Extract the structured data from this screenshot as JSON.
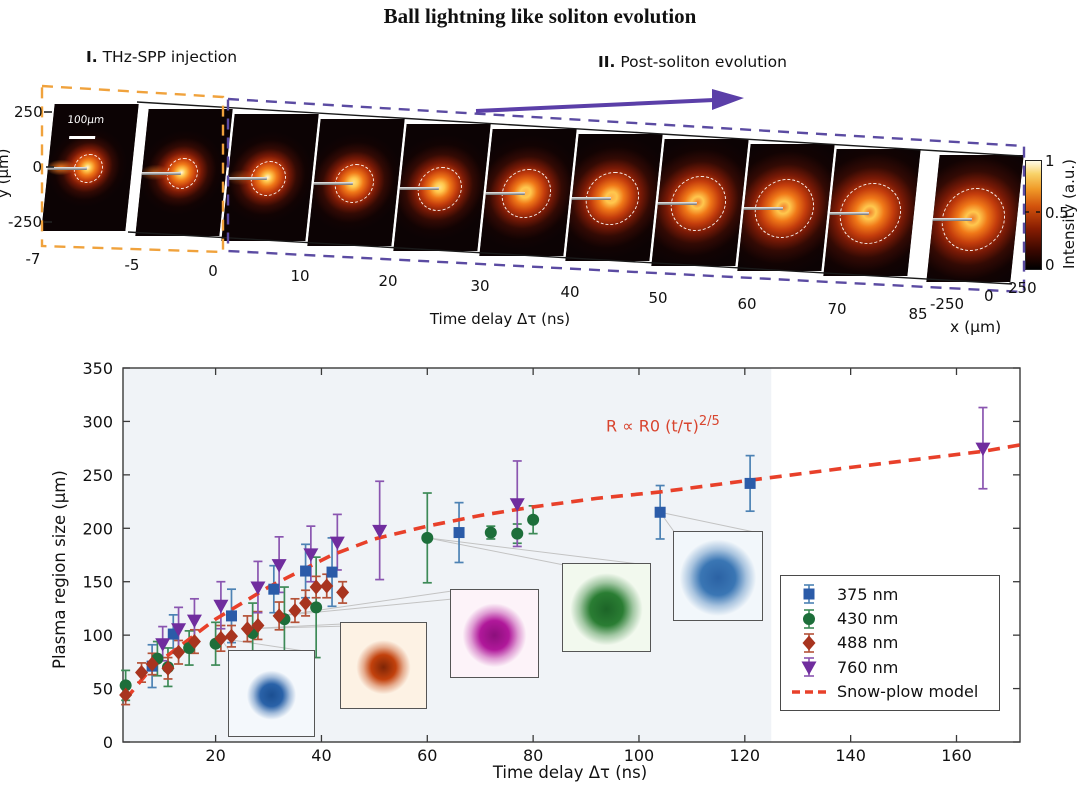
{
  "figure_title": "Ball lightning like soliton evolution",
  "montage": {
    "section_injection": {
      "roman": "I.",
      "label": "THz-SPP injection"
    },
    "section_evolution": {
      "roman": "II.",
      "label": "Post-soliton evolution"
    },
    "scale_bar": "100µm",
    "y_axis": {
      "label": "y (µm)",
      "ticks": [
        "250",
        "0",
        "-250"
      ]
    },
    "time_axis": {
      "label": "Time delay Δτ (ns)"
    },
    "x_axis": {
      "label": "x (µm)",
      "ticks": [
        "-250",
        "0",
        "250"
      ]
    },
    "colorbar": {
      "label": "Intensity (a.u.)",
      "ticks": [
        "1",
        "0.5",
        "0"
      ]
    },
    "frames": [
      {
        "time": "-7",
        "blob": 0.45,
        "ring": 0.32,
        "hot": 1.0,
        "streak": 0.95
      },
      {
        "time": "-5",
        "blob": 0.48,
        "ring": 0.35,
        "hot": 0.95,
        "streak": 0.6
      },
      {
        "time": "0",
        "blob": 0.52,
        "ring": 0.4,
        "hot": 0.9,
        "streak": 0.35
      },
      {
        "time": "10",
        "blob": 0.56,
        "ring": 0.45,
        "hot": 0.82,
        "streak": 0
      },
      {
        "time": "20",
        "blob": 0.6,
        "ring": 0.5,
        "hot": 0.74,
        "streak": 0
      },
      {
        "time": "30",
        "blob": 0.65,
        "ring": 0.55,
        "hot": 0.66,
        "streak": 0
      },
      {
        "time": "40",
        "blob": 0.7,
        "ring": 0.6,
        "hot": 0.58,
        "streak": 0
      },
      {
        "time": "50",
        "blob": 0.74,
        "ring": 0.64,
        "hot": 0.52,
        "streak": 0
      },
      {
        "time": "60",
        "blob": 0.78,
        "ring": 0.68,
        "hot": 0.47,
        "streak": 0
      },
      {
        "time": "70",
        "blob": 0.82,
        "ring": 0.71,
        "hot": 0.43,
        "streak": 0
      },
      {
        "time": "85",
        "blob": 0.85,
        "ring": 0.73,
        "hot": 0.4,
        "streak": 0
      }
    ]
  },
  "chart_data": {
    "type": "scatter",
    "title": "",
    "xlabel": "Time delay Δτ (ns)",
    "ylabel": "Plasma region size (µm)",
    "xlim": [
      2.5,
      172
    ],
    "ylim": [
      0,
      350
    ],
    "x_ticks": [
      20,
      40,
      60,
      80,
      100,
      120,
      140,
      160
    ],
    "y_ticks": [
      0,
      50,
      100,
      150,
      200,
      250,
      300,
      350
    ],
    "grid": false,
    "shaded_region": {
      "x_end": 125,
      "color": "#f0f3f7"
    },
    "annotation": {
      "text": "R ∝ R0 (t/τ)",
      "exponent": "2/5",
      "color": "#d8442e"
    },
    "legend": {
      "position": "lower right",
      "entries": [
        "375 nm",
        "430 nm",
        "488 nm",
        "760 nm",
        "Snow-plow model"
      ]
    },
    "series": [
      {
        "name": "375 nm",
        "marker": "square",
        "color": "#2b5ba8",
        "bar_color": "#4d82b4",
        "points": [
          [
            8,
            71,
            20
          ],
          [
            12,
            101,
            18
          ],
          [
            23,
            118,
            25
          ],
          [
            31,
            143,
            22
          ],
          [
            37,
            160,
            25
          ],
          [
            42,
            159,
            32
          ],
          [
            66,
            196,
            28
          ],
          [
            104,
            215,
            25
          ],
          [
            121,
            242,
            26
          ]
        ]
      },
      {
        "name": "430 nm",
        "marker": "circle",
        "color": "#1d6e3a",
        "bar_color": "#3d8a57",
        "points": [
          [
            3,
            53,
            14
          ],
          [
            9,
            78,
            16
          ],
          [
            11,
            70,
            18
          ],
          [
            15,
            88,
            16
          ],
          [
            20,
            92,
            20
          ],
          [
            27,
            102,
            28
          ],
          [
            33,
            115,
            30
          ],
          [
            39,
            126,
            47
          ],
          [
            60,
            191,
            42
          ],
          [
            72,
            196,
            6
          ],
          [
            77,
            195,
            9
          ],
          [
            80,
            208,
            13
          ]
        ]
      },
      {
        "name": "488 nm",
        "marker": "diamond",
        "color": "#a8341f",
        "bar_color": "#b45238",
        "points": [
          [
            3,
            44,
            9
          ],
          [
            6,
            65,
            9
          ],
          [
            8,
            73,
            10
          ],
          [
            11,
            69,
            10
          ],
          [
            13,
            84,
            11
          ],
          [
            16,
            94,
            11
          ],
          [
            21,
            97,
            12
          ],
          [
            23,
            99,
            10
          ],
          [
            26,
            106,
            12
          ],
          [
            28,
            109,
            13
          ],
          [
            32,
            118,
            13
          ],
          [
            35,
            123,
            11
          ],
          [
            37,
            130,
            12
          ],
          [
            39,
            145,
            10
          ],
          [
            41,
            146,
            11
          ],
          [
            44,
            140,
            10
          ]
        ]
      },
      {
        "name": "760 nm",
        "marker": "triangle-down",
        "color": "#702d9e",
        "bar_color": "#8a55b0",
        "points": [
          [
            10,
            92,
            16
          ],
          [
            13,
            106,
            20
          ],
          [
            16,
            114,
            20
          ],
          [
            21,
            128,
            22
          ],
          [
            28,
            145,
            24
          ],
          [
            32,
            166,
            26
          ],
          [
            38,
            176,
            26
          ],
          [
            43,
            187,
            26
          ],
          [
            51,
            198,
            46
          ],
          [
            77,
            223,
            40
          ],
          [
            165,
            275,
            38
          ]
        ]
      },
      {
        "name": "Snow-plow model",
        "marker": "dashed-line",
        "color": "#e8402a",
        "points": [
          [
            3,
            40
          ],
          [
            8,
            70
          ],
          [
            12,
            85
          ],
          [
            16,
            100
          ],
          [
            20,
            115
          ],
          [
            25,
            130
          ],
          [
            30,
            145
          ],
          [
            36,
            160
          ],
          [
            42,
            175
          ],
          [
            50,
            190
          ],
          [
            60,
            202
          ],
          [
            70,
            212
          ],
          [
            80,
            220
          ],
          [
            92,
            228
          ],
          [
            104,
            234
          ],
          [
            121,
            245
          ],
          [
            140,
            257
          ],
          [
            155,
            266
          ],
          [
            165,
            272
          ],
          [
            172,
            278
          ]
        ]
      }
    ]
  },
  "insets": [
    {
      "name": "spot-blue-dense",
      "bg": "#f4f8fc",
      "spot": "#2a62a8",
      "core": "#1b4f92",
      "r": 0.3,
      "connect_from": [
        21,
        97
      ]
    },
    {
      "name": "spot-orange",
      "bg": "#fdf2e4",
      "spot": "#c2410c",
      "core": "#7e2506",
      "r": 0.33,
      "connect_from": [
        26,
        106
      ]
    },
    {
      "name": "spot-magenta",
      "bg": "#fdf3f9",
      "spot": "#b0189a",
      "core": "#8c0f7c",
      "r": 0.38,
      "connect_from": [
        32,
        118
      ]
    },
    {
      "name": "spot-green",
      "bg": "#f2f9ee",
      "spot": "#2a7d33",
      "core": "#1c6427",
      "r": 0.43,
      "connect_from": [
        60,
        191
      ]
    },
    {
      "name": "spot-blue-sparse",
      "bg": "#f2f7fb",
      "spot": "#3a76b4",
      "core": "#2b62a4",
      "r": 0.45,
      "connect_from": [
        104,
        215
      ]
    }
  ]
}
